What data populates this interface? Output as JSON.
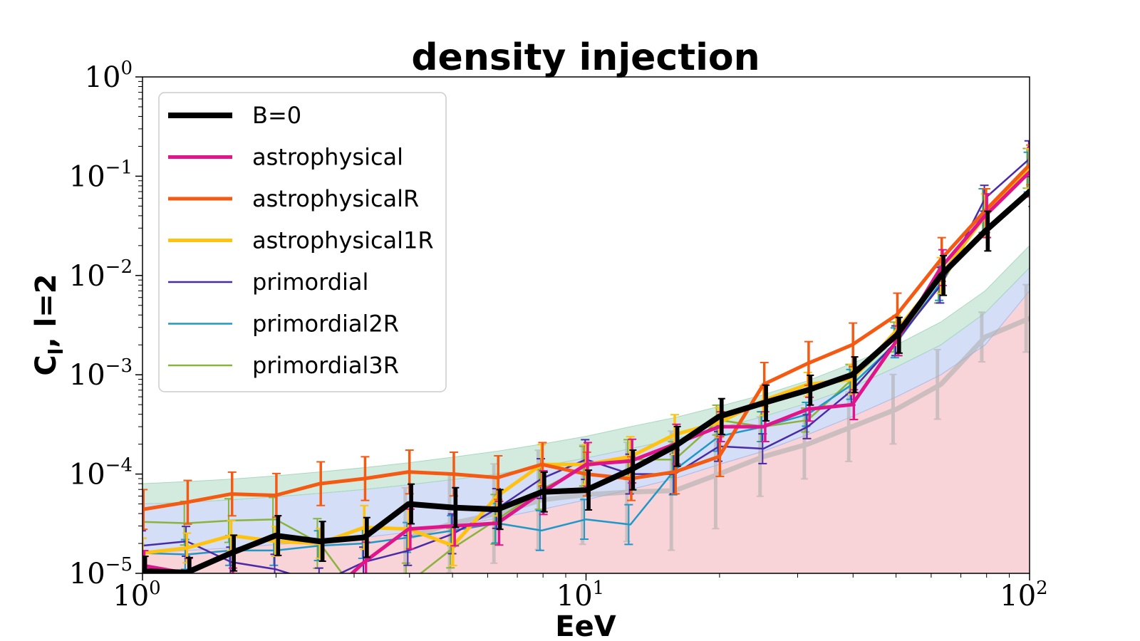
{
  "chart_data": {
    "type": "line",
    "title": "density injection",
    "xlabel": "EeV",
    "ylabel": "C_l, l=2",
    "ylabel_main": "C",
    "ylabel_sub": "l",
    "ylabel_rest": ", l=2",
    "xscale": "log",
    "yscale": "log",
    "xlim": [
      1,
      100
    ],
    "ylim": [
      1e-05,
      1
    ],
    "x_ticks": [
      {
        "value": 1,
        "base": "10",
        "exp": "0"
      },
      {
        "value": 10,
        "base": "10",
        "exp": "1"
      },
      {
        "value": 100,
        "base": "10",
        "exp": "2"
      }
    ],
    "y_ticks": [
      {
        "value": 1e-05,
        "base": "10",
        "exp": "−5"
      },
      {
        "value": 0.0001,
        "base": "10",
        "exp": "−4"
      },
      {
        "value": 0.001,
        "base": "10",
        "exp": "−3"
      },
      {
        "value": 0.01,
        "base": "10",
        "exp": "−2"
      },
      {
        "value": 0.1,
        "base": "10",
        "exp": "−1"
      },
      {
        "value": 1,
        "base": "10",
        "exp": "0"
      }
    ],
    "legend_position": "upper-left",
    "x": [
      1.0,
      1.259,
      1.585,
      1.995,
      2.512,
      3.162,
      3.981,
      5.012,
      6.31,
      7.943,
      10.0,
      12.59,
      15.85,
      19.95,
      25.12,
      31.62,
      39.81,
      50.12,
      63.1,
      79.43,
      100.0
    ],
    "bands": [
      {
        "name": "isotropic-red",
        "color": "#f2a8b2",
        "lower": [
          1e-06,
          1e-06,
          1e-06,
          1e-06,
          1e-06,
          1e-06,
          1e-06,
          1e-06,
          1e-06,
          1e-06,
          1e-06,
          1e-06,
          1e-06,
          1e-06,
          1e-06,
          1e-06,
          1e-06,
          1e-06,
          1e-06,
          1e-06,
          1e-06
        ],
        "upper": [
          1.6e-05,
          1.7e-05,
          1.8e-05,
          1.95e-05,
          2.1e-05,
          2.3e-05,
          2.6e-05,
          3e-05,
          3.6e-05,
          4.4e-05,
          5.5e-05,
          7e-05,
          9e-05,
          0.000125,
          0.00017,
          0.00025,
          0.00038,
          0.0006,
          0.001,
          0.002,
          0.007
        ]
      },
      {
        "name": "isotropic-blue",
        "color": "#a9c0ef",
        "lower": [
          1.6e-05,
          1.7e-05,
          1.8e-05,
          1.95e-05,
          2.1e-05,
          2.3e-05,
          2.6e-05,
          3e-05,
          3.6e-05,
          4.4e-05,
          5.5e-05,
          7e-05,
          9e-05,
          0.000125,
          0.00017,
          0.00025,
          0.00038,
          0.0006,
          0.001,
          0.002,
          0.007
        ],
        "upper": [
          5e-05,
          5.2e-05,
          5.5e-05,
          5.9e-05,
          6.4e-05,
          7e-05,
          7.8e-05,
          8.8e-05,
          0.0001,
          0.00012,
          0.000145,
          0.00018,
          0.000225,
          0.00029,
          0.00038,
          0.00052,
          0.00075,
          0.0012,
          0.002,
          0.0042,
          0.012
        ]
      },
      {
        "name": "isotropic-green",
        "color": "#a8d8c0",
        "lower": [
          5e-05,
          5.2e-05,
          5.5e-05,
          5.9e-05,
          6.4e-05,
          7e-05,
          7.8e-05,
          8.8e-05,
          0.0001,
          0.00012,
          0.000145,
          0.00018,
          0.000225,
          0.00029,
          0.00038,
          0.00052,
          0.00075,
          0.0012,
          0.002,
          0.0042,
          0.012
        ],
        "upper": [
          8e-05,
          8.4e-05,
          8.9e-05,
          9.6e-05,
          0.000105,
          0.000116,
          0.00013,
          0.000148,
          0.00017,
          0.0002,
          0.00024,
          0.0003,
          0.00037,
          0.00048,
          0.00063,
          0.00087,
          0.0013,
          0.002,
          0.0034,
          0.007,
          0.02
        ]
      }
    ],
    "series": [
      {
        "name": "grey-reference",
        "color": "#b0b0b0",
        "width": 7,
        "opacity": 0.6,
        "legend": false,
        "values": [
          null,
          null,
          null,
          null,
          null,
          null,
          2.3e-05,
          3.2e-05,
          4e-05,
          5.5e-05,
          6.2e-05,
          6.6e-05,
          6.8e-05,
          0.0001,
          0.00015,
          0.0002,
          0.0003,
          0.00045,
          0.0008,
          0.0024,
          0.0037
        ],
        "err": [
          0,
          0,
          0,
          0,
          0,
          0,
          0.5,
          0.5,
          0.5,
          0.5,
          0.5,
          0.5,
          0.6,
          0.55,
          0.4,
          0.35,
          0.35,
          0.35,
          0.35,
          0.25,
          0.34
        ]
      },
      {
        "name": "primordial3R",
        "color": "#8ab33a",
        "width": 2.5,
        "legend": true,
        "values": [
          3.3e-05,
          3.2e-05,
          3.4e-05,
          3.5e-05,
          2e-05,
          5e-06,
          8e-06,
          1.8e-05,
          3.5e-05,
          7e-05,
          0.00012,
          0.00014,
          0.00014,
          0.00035,
          0.0003,
          0.00035,
          0.0009,
          0.0024,
          0.008,
          0.045,
          0.12
        ],
        "err": [
          0.22,
          0.22,
          0.22,
          0.22,
          0.25,
          0.2,
          0.2,
          0.2,
          0.25,
          0.2,
          0.2,
          0.2,
          0.18,
          0.15,
          0.15,
          0.12,
          0.15,
          0.15,
          0.18,
          0.22,
          0.2
        ]
      },
      {
        "name": "primordial2R",
        "color": "#1e98c8",
        "width": 2.5,
        "legend": true,
        "values": [
          1.6e-05,
          1.55e-05,
          1.7e-05,
          1.7e-05,
          1.9e-05,
          2e-05,
          2.3e-05,
          2.7e-05,
          3.2e-05,
          2.7e-05,
          3.5e-05,
          3.1e-05,
          0.00011,
          0.00024,
          0.0003,
          0.0004,
          0.0008,
          0.0021,
          0.0085,
          0.045,
          0.11
        ],
        "err": [
          0.15,
          0.15,
          0.15,
          0.15,
          0.15,
          0.15,
          0.15,
          0.15,
          0.2,
          0.2,
          0.2,
          0.2,
          0.25,
          0.15,
          0.15,
          0.12,
          0.15,
          0.15,
          0.18,
          0.22,
          0.2
        ]
      },
      {
        "name": "primordial",
        "color": "#4a2aa8",
        "width": 2.5,
        "legend": true,
        "values": [
          1.9e-05,
          2.1e-05,
          1.3e-05,
          1.1e-05,
          8e-06,
          1.3e-05,
          1.7e-05,
          2.5e-05,
          4.5e-05,
          9e-05,
          0.00014,
          0.0001,
          0.0001,
          0.00019,
          0.00018,
          0.0003,
          0.0007,
          0.0022,
          0.008,
          0.06,
          0.15
        ],
        "err": [
          0.15,
          0.15,
          0.15,
          0.15,
          0.15,
          0.15,
          0.15,
          0.2,
          0.2,
          0.2,
          0.2,
          0.2,
          0.2,
          0.15,
          0.15,
          0.12,
          0.15,
          0.15,
          0.18,
          0.13,
          0.18
        ]
      },
      {
        "name": "astrophysical1R",
        "color": "#ffc20e",
        "width": 5,
        "legend": true,
        "values": [
          1.6e-05,
          1.8e-05,
          2.4e-05,
          2.1e-05,
          2e-05,
          2.9e-05,
          2.8e-05,
          1.9e-05,
          6e-05,
          0.000125,
          0.000125,
          0.00015,
          0.00025,
          0.00033,
          0.00055,
          0.0008,
          0.0009,
          0.0028,
          0.01,
          0.04,
          0.12
        ],
        "err": [
          0.15,
          0.15,
          0.15,
          0.15,
          0.15,
          0.22,
          0.2,
          0.2,
          0.2,
          0.2,
          0.2,
          0.2,
          0.2,
          0.15,
          0.15,
          0.12,
          0.15,
          0.15,
          0.18,
          0.22,
          0.2
        ]
      },
      {
        "name": "astrophysicalR",
        "color": "#f45a12",
        "width": 5,
        "legend": true,
        "values": [
          4.4e-05,
          5.2e-05,
          6.3e-05,
          6.1e-05,
          8e-05,
          9e-05,
          0.000105,
          0.0001,
          9.2e-05,
          0.000125,
          0.0001,
          9e-05,
          0.000105,
          0.00015,
          0.0008,
          0.0013,
          0.002,
          0.004,
          0.0145,
          0.045,
          0.13
        ],
        "err": [
          0.2,
          0.22,
          0.22,
          0.22,
          0.22,
          0.22,
          0.22,
          0.22,
          0.22,
          0.22,
          0.22,
          0.22,
          0.22,
          0.2,
          0.22,
          0.22,
          0.22,
          0.22,
          0.22,
          0.22,
          0.2
        ]
      },
      {
        "name": "astrophysical",
        "color": "#e0158c",
        "width": 5,
        "legend": true,
        "values": [
          1.2e-05,
          1e-05,
          8e-06,
          6e-06,
          5e-06,
          1.3e-05,
          2.8e-05,
          3e-05,
          3.2e-05,
          6.5e-05,
          0.000125,
          0.000135,
          0.0002,
          0.0003,
          0.0003,
          0.00045,
          0.0005,
          0.0022,
          0.012,
          0.04,
          0.11
        ],
        "err": [
          0.15,
          0.15,
          0.15,
          0.15,
          0.15,
          0.2,
          0.2,
          0.2,
          0.22,
          0.22,
          0.22,
          0.22,
          0.2,
          0.15,
          0.15,
          0.12,
          0.15,
          0.15,
          0.18,
          0.22,
          0.25
        ]
      },
      {
        "name": "B=0",
        "color": "#000000",
        "width": 8,
        "legend": true,
        "values": [
          1.05e-05,
          1.02e-05,
          1.6e-05,
          2.4e-05,
          2.1e-05,
          2.3e-05,
          5e-05,
          4.6e-05,
          4.4e-05,
          6.6e-05,
          6.9e-05,
          0.00011,
          0.00019,
          0.00038,
          0.00052,
          0.0007,
          0.001,
          0.0025,
          0.01,
          0.028,
          0.07
        ],
        "err": [
          0.15,
          0.15,
          0.18,
          0.2,
          0.2,
          0.2,
          0.2,
          0.2,
          0.2,
          0.2,
          0.2,
          0.2,
          0.2,
          0.18,
          0.18,
          0.15,
          0.18,
          0.18,
          0.2,
          0.2,
          0.15
        ]
      }
    ],
    "legend_entries": [
      {
        "label": "B=0",
        "color": "#000000",
        "width": 8
      },
      {
        "label": "astrophysical",
        "color": "#e0158c",
        "width": 5
      },
      {
        "label": "astrophysicalR",
        "color": "#f45a12",
        "width": 5
      },
      {
        "label": "astrophysical1R",
        "color": "#ffc20e",
        "width": 5
      },
      {
        "label": "primordial",
        "color": "#4a2aa8",
        "width": 2.5
      },
      {
        "label": "primordial2R",
        "color": "#1e98c8",
        "width": 2.5
      },
      {
        "label": "primordial3R",
        "color": "#8ab33a",
        "width": 2.5
      }
    ]
  }
}
